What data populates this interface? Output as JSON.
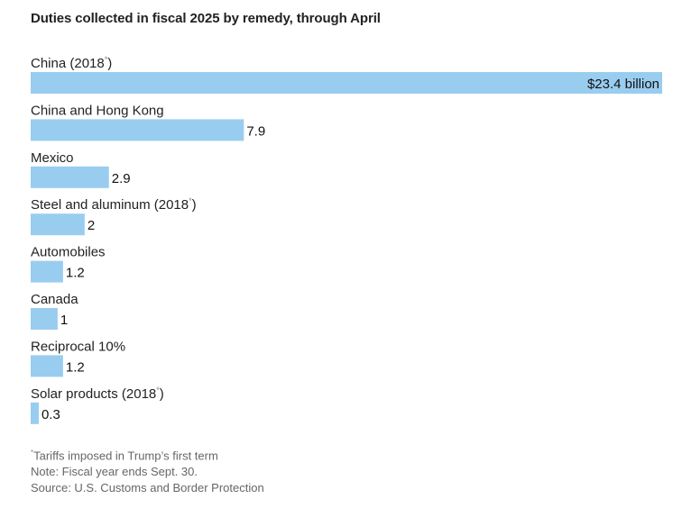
{
  "chart_data": {
    "type": "bar",
    "orientation": "horizontal",
    "title": "Duties collected in fiscal 2025 by remedy, through April",
    "categories": [
      "China (2018*)",
      "China and Hong Kong",
      "Mexico",
      "Steel and aluminum (2018*)",
      "Automobiles",
      "Canada",
      "Reciprocal 10%",
      "Solar products (2018*)"
    ],
    "category_parts": [
      {
        "text": "China (2018",
        "sup": "*",
        "tail": ")"
      },
      {
        "text": "China and Hong Kong",
        "sup": "",
        "tail": ""
      },
      {
        "text": "Mexico",
        "sup": "",
        "tail": ""
      },
      {
        "text": "Steel and aluminum (2018",
        "sup": "*",
        "tail": ")"
      },
      {
        "text": "Automobiles",
        "sup": "",
        "tail": ""
      },
      {
        "text": "Canada",
        "sup": "",
        "tail": ""
      },
      {
        "text": "Reciprocal 10%",
        "sup": "",
        "tail": ""
      },
      {
        "text": "Solar products (2018",
        "sup": "*",
        "tail": ")"
      }
    ],
    "values": [
      23.4,
      7.9,
      2.9,
      2,
      1.2,
      1,
      1.2,
      0.3
    ],
    "value_labels": [
      "$23.4 billion",
      "7.9",
      "2.9",
      "2",
      "1.2",
      "1",
      "1.2",
      "0.3"
    ],
    "unit": "billion dollars",
    "xlim": [
      0,
      23.4
    ],
    "bar_color": "#99cdf0",
    "grid": false,
    "legend": "none"
  },
  "notes": {
    "footnote_marker": "*",
    "footnote_text": "Tariffs imposed in Trump’s first term",
    "fiscal_note": "Note: Fiscal year ends Sept. 30.",
    "source": "Source: U.S. Customs and Border Protection"
  }
}
